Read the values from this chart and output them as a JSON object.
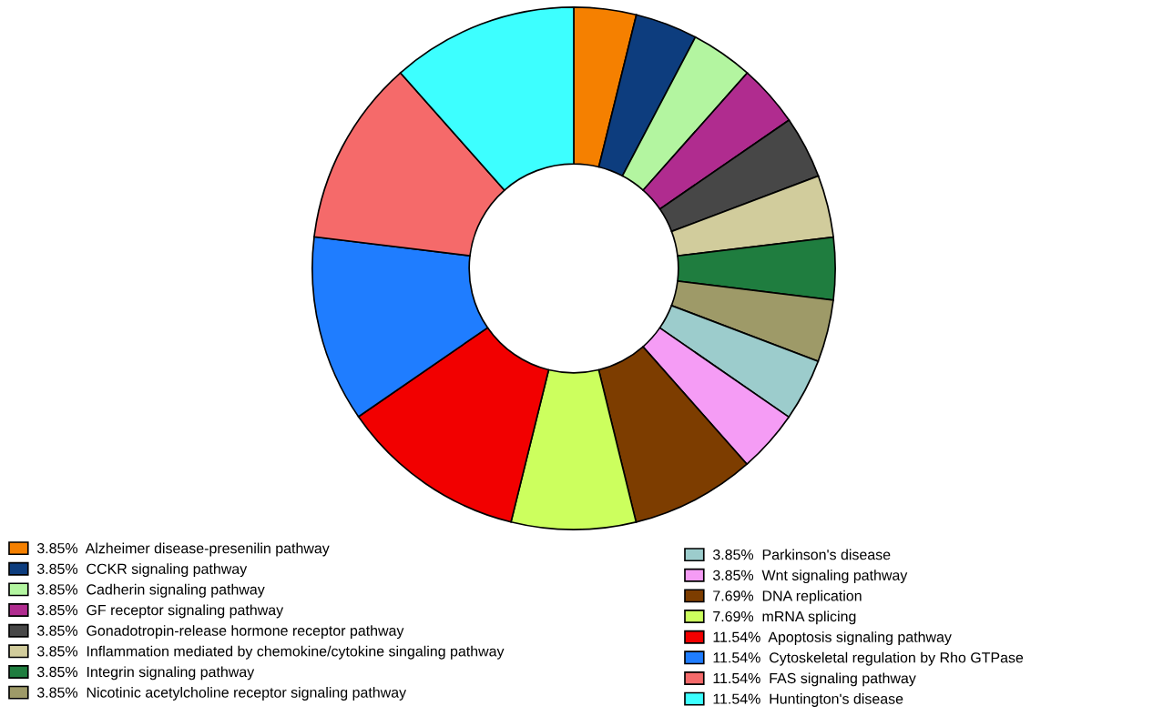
{
  "chart_data": {
    "type": "donut",
    "categories": [
      "Alzheimer disease-presenilin pathway",
      "CCKR signaling pathway",
      "Cadherin signaling pathway",
      "GF receptor signaling pathway",
      "Gonadotropin-release hormone receptor pathway",
      "Inflammation mediated by chemokine/cytokine singaling pathway",
      "Integrin signaling pathway",
      "Nicotinic acetylcholine receptor signaling pathway",
      "Parkinson's disease",
      "Wnt signaling pathway",
      "DNA replication",
      "mRNA splicing",
      "Apoptosis signaling pathway",
      "Cytoskeletal regulation by Rho GTPase",
      "FAS signaling pathway",
      "Huntington's disease"
    ],
    "values": [
      3.85,
      3.85,
      3.85,
      3.85,
      3.85,
      3.85,
      3.85,
      3.85,
      3.85,
      3.85,
      7.69,
      7.69,
      11.54,
      11.54,
      11.54,
      11.54
    ],
    "colors": [
      "#f58000",
      "#0d3d7e",
      "#b3f5a0",
      "#b02c8f",
      "#474747",
      "#d1cc9c",
      "#1f7d3f",
      "#9e9a68",
      "#9ccccc",
      "#f59cf5",
      "#7d3d00",
      "#ccff5e",
      "#f20000",
      "#1f7dff",
      "#f56a6a",
      "#3dffff"
    ],
    "value_labels": [
      "3.85%",
      "3.85%",
      "3.85%",
      "3.85%",
      "3.85%",
      "3.85%",
      "3.85%",
      "3.85%",
      "3.85%",
      "3.85%",
      "7.69%",
      "7.69%",
      "11.54%",
      "11.54%",
      "11.54%",
      "11.54%"
    ],
    "legend": "bottom"
  }
}
